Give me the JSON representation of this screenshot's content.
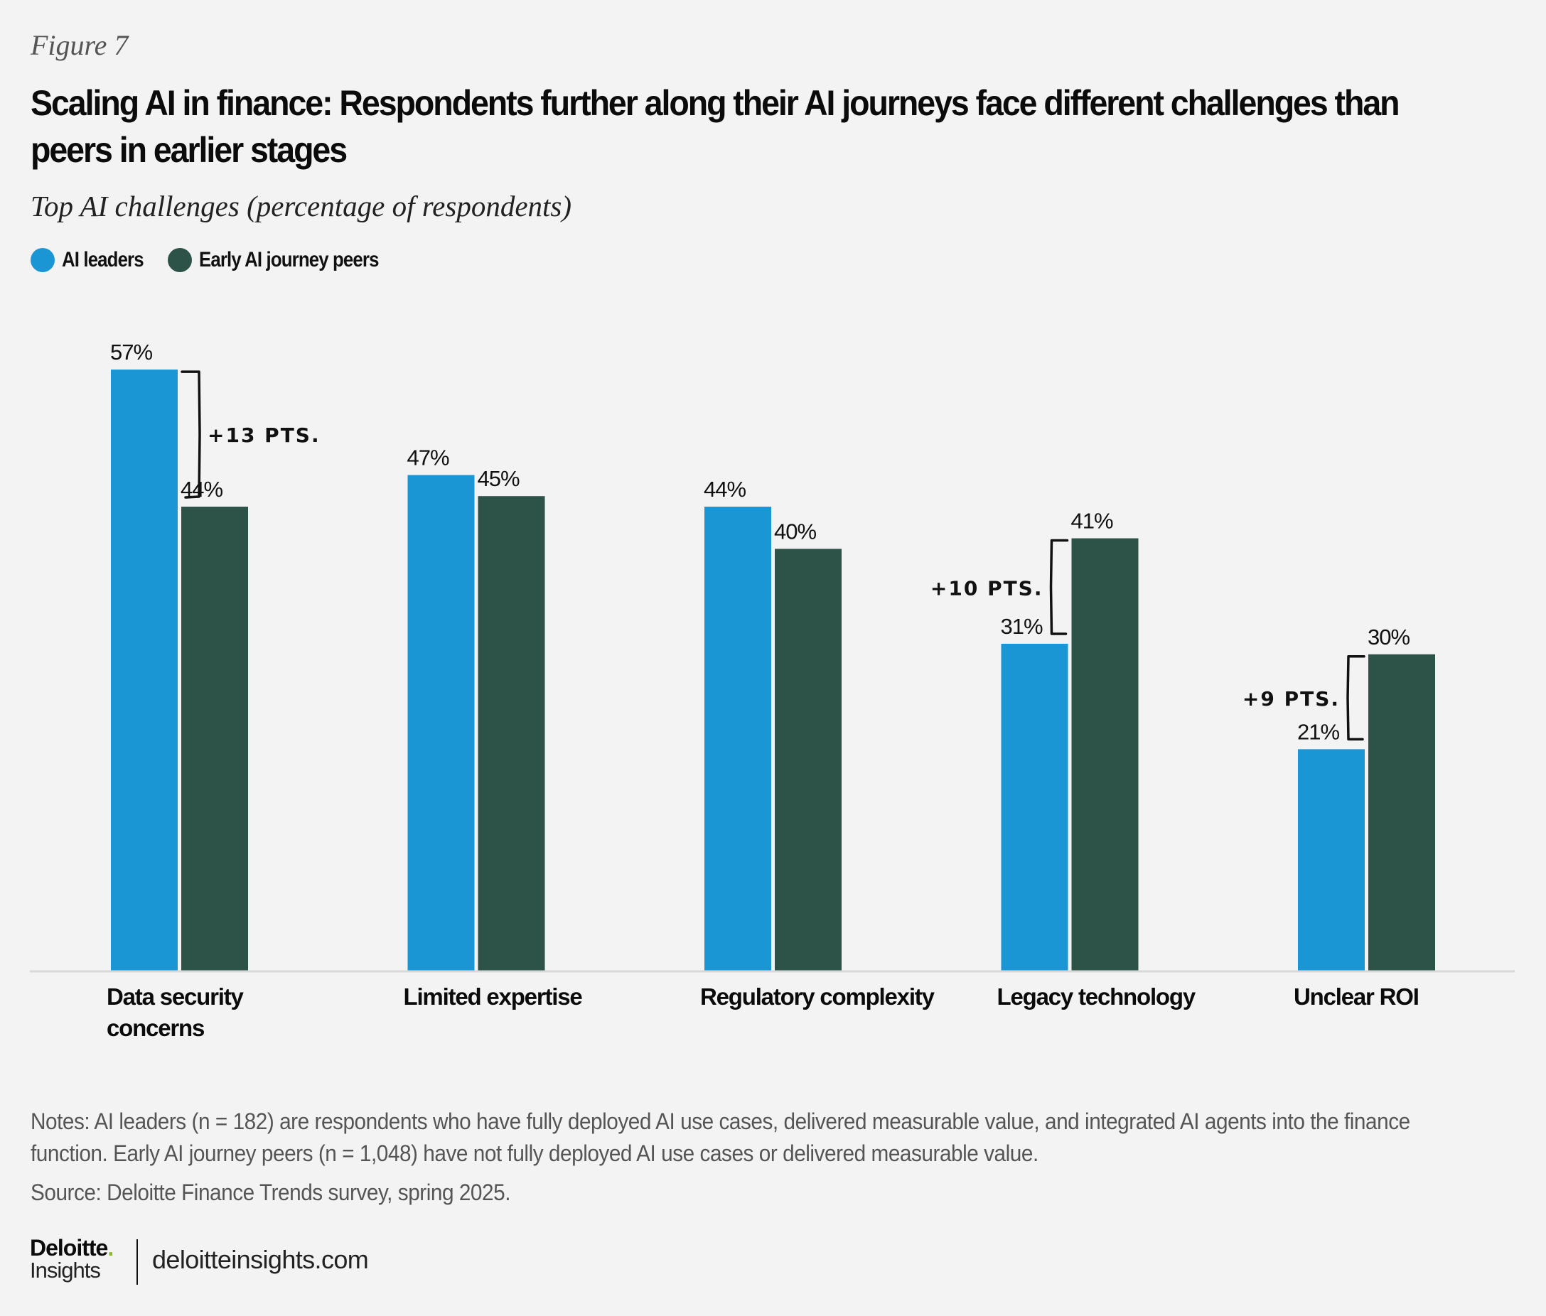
{
  "figure_label": "Figure 7",
  "title": "Scaling AI in finance: Respondents further along their AI journeys face different challenges than peers in earlier stages",
  "subtitle": "Top AI challenges (percentage of respondents)",
  "colors": {
    "ai_leaders": "#1a96d4",
    "early_peers": "#2d5348",
    "axis": "#d8d8d8",
    "background": "#f3f3f3"
  },
  "legend": [
    {
      "label": "AI leaders",
      "color": "#1a96d4"
    },
    {
      "label": "Early AI journey peers",
      "color": "#2d5348"
    }
  ],
  "chart_data": {
    "type": "bar",
    "title": "Top AI challenges (percentage of respondents)",
    "xlabel": "",
    "ylabel": "Percentage of respondents",
    "ylim": [
      0,
      57
    ],
    "grid": false,
    "legend_position": "top-left",
    "categories": [
      [
        "Data security",
        "concerns"
      ],
      [
        "Limited expertise"
      ],
      [
        "Regulatory complexity"
      ],
      [
        "Legacy technology"
      ],
      [
        "Unclear ROI"
      ]
    ],
    "series": [
      {
        "name": "AI leaders",
        "color": "#1a96d4",
        "values": [
          57,
          47,
          44,
          31,
          21
        ],
        "labels": [
          "57%",
          "47%",
          "44%",
          "31%",
          "21%"
        ]
      },
      {
        "name": "Early AI journey peers",
        "color": "#2d5348",
        "values": [
          44,
          45,
          40,
          41,
          30
        ],
        "labels": [
          "44%",
          "45%",
          "40%",
          "41%",
          "30%"
        ]
      }
    ],
    "annotations": [
      {
        "category_index": 0,
        "text": "+13 PTS.",
        "side": "right"
      },
      {
        "category_index": 3,
        "text": "+10 PTS.",
        "side": "left"
      },
      {
        "category_index": 4,
        "text": "+9 PTS.",
        "side": "left"
      }
    ]
  },
  "notes": "Notes: AI leaders (n = 182) are respondents who have fully deployed AI use cases, delivered measurable value, and integrated AI agents into the finance function. Early AI journey peers (n = 1,048) have not fully deployed AI use cases or delivered measurable value.",
  "source": "Source: Deloitte Finance Trends survey, spring 2025.",
  "footer": {
    "logo_brand": "Deloitte",
    "logo_dot": ".",
    "logo_sub": "Insights",
    "url": "deloitteinsights.com"
  }
}
